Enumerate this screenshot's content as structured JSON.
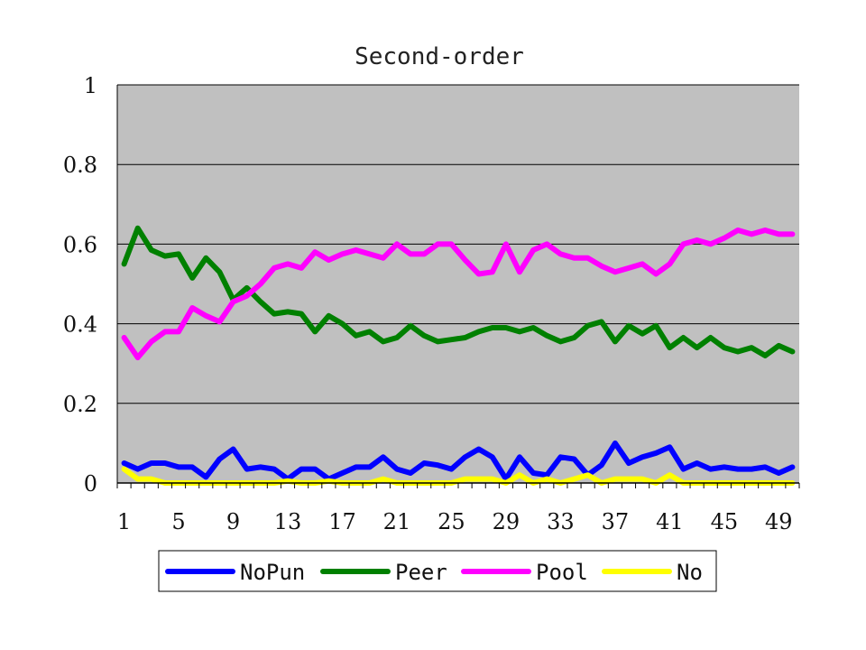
{
  "chart_data": {
    "type": "line",
    "title": "Second-order",
    "xlabel": "",
    "ylabel": "",
    "ylim": [
      0,
      1
    ],
    "y_ticks": [
      "0",
      "0.2",
      "0.4",
      "0.6",
      "0.8",
      "1"
    ],
    "y_tick_values": [
      0,
      0.2,
      0.4,
      0.6,
      0.8,
      1
    ],
    "x": [
      1,
      2,
      3,
      4,
      5,
      6,
      7,
      8,
      9,
      10,
      11,
      12,
      13,
      14,
      15,
      16,
      17,
      18,
      19,
      20,
      21,
      22,
      23,
      24,
      25,
      26,
      27,
      28,
      29,
      30,
      31,
      32,
      33,
      34,
      35,
      36,
      37,
      38,
      39,
      40,
      41,
      42,
      43,
      44,
      45,
      46,
      47,
      48,
      49,
      50
    ],
    "x_tick_labels": [
      "1",
      "5",
      "9",
      "13",
      "17",
      "21",
      "25",
      "29",
      "33",
      "37",
      "41",
      "45",
      "49"
    ],
    "x_tick_values": [
      1,
      5,
      9,
      13,
      17,
      21,
      25,
      29,
      33,
      37,
      41,
      45,
      49
    ],
    "grid": true,
    "plot_background": "#c0c0c0",
    "legend_position": "bottom",
    "series": [
      {
        "name": "NoPun",
        "color": "#0000ff",
        "values": [
          0.05,
          0.035,
          0.05,
          0.05,
          0.04,
          0.04,
          0.015,
          0.06,
          0.085,
          0.035,
          0.04,
          0.035,
          0.01,
          0.035,
          0.035,
          0.01,
          0.025,
          0.04,
          0.04,
          0.065,
          0.035,
          0.025,
          0.05,
          0.045,
          0.035,
          0.065,
          0.085,
          0.065,
          0.01,
          0.065,
          0.025,
          0.02,
          0.065,
          0.06,
          0.02,
          0.045,
          0.1,
          0.05,
          0.065,
          0.075,
          0.09,
          0.035,
          0.05,
          0.035,
          0.04,
          0.035,
          0.035,
          0.04,
          0.025,
          0.04
        ]
      },
      {
        "name": "Peer",
        "color": "#008000",
        "values": [
          0.55,
          0.64,
          0.585,
          0.57,
          0.575,
          0.515,
          0.565,
          0.53,
          0.46,
          0.49,
          0.455,
          0.425,
          0.43,
          0.425,
          0.38,
          0.42,
          0.4,
          0.37,
          0.38,
          0.355,
          0.365,
          0.395,
          0.37,
          0.355,
          0.36,
          0.365,
          0.38,
          0.39,
          0.39,
          0.38,
          0.39,
          0.37,
          0.355,
          0.365,
          0.395,
          0.405,
          0.355,
          0.395,
          0.375,
          0.395,
          0.34,
          0.365,
          0.34,
          0.365,
          0.34,
          0.33,
          0.34,
          0.32,
          0.345,
          0.33
        ]
      },
      {
        "name": "Pool",
        "color": "#ff00ff",
        "values": [
          0.365,
          0.315,
          0.355,
          0.38,
          0.38,
          0.44,
          0.42,
          0.405,
          0.455,
          0.47,
          0.5,
          0.54,
          0.55,
          0.54,
          0.58,
          0.56,
          0.575,
          0.585,
          0.575,
          0.565,
          0.6,
          0.575,
          0.575,
          0.6,
          0.6,
          0.56,
          0.525,
          0.53,
          0.6,
          0.53,
          0.585,
          0.6,
          0.575,
          0.565,
          0.565,
          0.545,
          0.53,
          0.54,
          0.55,
          0.525,
          0.55,
          0.6,
          0.61,
          0.6,
          0.615,
          0.635,
          0.625,
          0.635,
          0.625,
          0.625
        ]
      },
      {
        "name": "No",
        "color": "#ffff00",
        "values": [
          0.035,
          0.01,
          0.01,
          0.0,
          0.0,
          0.0,
          0.0,
          0.0,
          0.0,
          0.0,
          0.0,
          0.0,
          0.005,
          0.0,
          0.0,
          0.005,
          0.0,
          0.0,
          0.0,
          0.01,
          0.0,
          0.0,
          0.0,
          0.0,
          0.0,
          0.01,
          0.01,
          0.01,
          0.0,
          0.02,
          0.0,
          0.01,
          0.0,
          0.01,
          0.02,
          0.0,
          0.01,
          0.01,
          0.01,
          0.0,
          0.02,
          0.0,
          0.0,
          0.0,
          0.0,
          0.0,
          0.0,
          0.0,
          0.0,
          0.0
        ]
      }
    ]
  }
}
